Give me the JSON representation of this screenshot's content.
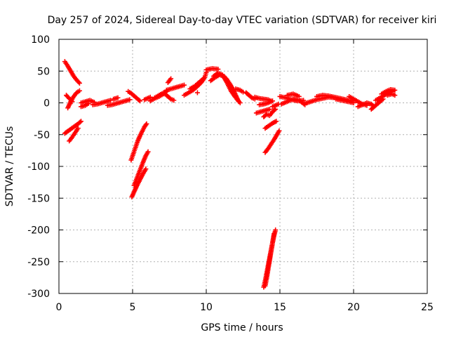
{
  "chart_data": {
    "type": "scatter",
    "title": "Day 257 of 2024, Sidereal Day-to-day VTEC variation (SDTVAR) for receiver kiri",
    "xlabel": "GPS time / hours",
    "ylabel": "SDTVAR / TECUs",
    "xlim": [
      0,
      25
    ],
    "ylim": [
      -300,
      100
    ],
    "xticks": [
      0,
      5,
      10,
      15,
      20,
      25
    ],
    "yticks": [
      -300,
      -250,
      -200,
      -150,
      -100,
      -50,
      0,
      50,
      100
    ],
    "xtick_labels": [
      "0",
      "5",
      "10",
      "15",
      "20",
      "25"
    ],
    "ytick_labels": [
      "-300",
      "-250",
      "-200",
      "-150",
      "-100",
      "-50",
      "0",
      "50",
      "100"
    ],
    "grid": true,
    "marker": "+",
    "color": "#ff0000",
    "segments": [
      [
        [
          0.4,
          65
        ],
        [
          0.6,
          58
        ],
        [
          0.8,
          50
        ],
        [
          1.0,
          42
        ],
        [
          1.2,
          36
        ],
        [
          1.4,
          31
        ]
      ],
      [
        [
          0.5,
          12
        ],
        [
          0.7,
          7
        ],
        [
          0.9,
          2
        ]
      ],
      [
        [
          0.6,
          -8
        ],
        [
          0.8,
          2
        ],
        [
          1.0,
          10
        ],
        [
          1.2,
          16
        ],
        [
          1.4,
          19
        ]
      ],
      [
        [
          0.4,
          -48
        ],
        [
          0.7,
          -43
        ],
        [
          1.0,
          -38
        ],
        [
          1.3,
          -33
        ],
        [
          1.5,
          -29
        ]
      ],
      [
        [
          0.7,
          -60
        ],
        [
          0.9,
          -54
        ],
        [
          1.1,
          -47
        ],
        [
          1.3,
          -40
        ]
      ],
      [
        [
          1.5,
          -6
        ],
        [
          1.8,
          -4
        ],
        [
          2.0,
          -1
        ]
      ],
      [
        [
          1.5,
          0
        ],
        [
          1.8,
          2
        ],
        [
          2.1,
          4
        ],
        [
          2.4,
          1
        ]
      ],
      [
        [
          2.3,
          -3
        ],
        [
          2.6,
          -2
        ],
        [
          2.9,
          0
        ],
        [
          3.2,
          2
        ],
        [
          3.5,
          4
        ]
      ],
      [
        [
          3.3,
          -4
        ],
        [
          3.6,
          -3
        ],
        [
          3.9,
          -1
        ],
        [
          4.2,
          1
        ],
        [
          4.5,
          3
        ],
        [
          4.8,
          5
        ]
      ],
      [
        [
          3.7,
          6
        ],
        [
          4.0,
          8
        ]
      ],
      [
        [
          4.7,
          18
        ],
        [
          4.9,
          15
        ],
        [
          5.1,
          11
        ],
        [
          5.3,
          7
        ],
        [
          5.5,
          3
        ]
      ],
      [
        [
          4.9,
          -90
        ],
        [
          5.05,
          -80
        ],
        [
          5.2,
          -70
        ],
        [
          5.35,
          -60
        ],
        [
          5.5,
          -52
        ],
        [
          5.65,
          -45
        ],
        [
          5.8,
          -38
        ],
        [
          5.95,
          -33
        ]
      ],
      [
        [
          4.95,
          -148
        ],
        [
          5.1,
          -140
        ],
        [
          5.3,
          -130
        ],
        [
          5.5,
          -121
        ],
        [
          5.7,
          -112
        ],
        [
          5.9,
          -104
        ]
      ],
      [
        [
          5.1,
          -130
        ],
        [
          5.3,
          -118
        ],
        [
          5.5,
          -106
        ],
        [
          5.7,
          -94
        ],
        [
          5.9,
          -83
        ],
        [
          6.05,
          -77
        ]
      ],
      [
        [
          5.8,
          5
        ],
        [
          6.0,
          7
        ],
        [
          6.2,
          9
        ]
      ],
      [
        [
          6.2,
          3
        ],
        [
          6.5,
          7
        ],
        [
          6.8,
          10
        ],
        [
          7.1,
          14
        ],
        [
          7.3,
          18
        ]
      ],
      [
        [
          6.5,
          8
        ],
        [
          6.8,
          12
        ],
        [
          7.1,
          16
        ]
      ],
      [
        [
          7.2,
          14
        ],
        [
          7.4,
          10
        ],
        [
          7.6,
          6
        ],
        [
          7.8,
          4
        ]
      ],
      [
        [
          7.3,
          20
        ],
        [
          7.6,
          22
        ],
        [
          7.9,
          24
        ],
        [
          8.2,
          26
        ],
        [
          8.5,
          28
        ]
      ],
      [
        [
          7.4,
          32
        ],
        [
          7.6,
          38
        ]
      ],
      [
        [
          8.5,
          12
        ],
        [
          8.8,
          16
        ],
        [
          9.1,
          20
        ],
        [
          9.4,
          26
        ],
        [
          9.7,
          33
        ],
        [
          9.9,
          40
        ],
        [
          10.0,
          48
        ]
      ],
      [
        [
          8.9,
          22
        ],
        [
          9.2,
          26
        ],
        [
          9.5,
          32
        ],
        [
          9.8,
          38
        ]
      ],
      [
        [
          9.4,
          16
        ]
      ],
      [
        [
          10.0,
          52
        ],
        [
          10.4,
          54
        ],
        [
          10.8,
          53
        ]
      ],
      [
        [
          10.3,
          35
        ],
        [
          10.6,
          40
        ],
        [
          10.9,
          44
        ],
        [
          11.2,
          42
        ],
        [
          11.4,
          37
        ],
        [
          11.6,
          30
        ],
        [
          11.8,
          22
        ],
        [
          12.0,
          12
        ],
        [
          12.2,
          2
        ]
      ],
      [
        [
          10.5,
          42
        ],
        [
          10.8,
          47
        ],
        [
          11.1,
          44
        ],
        [
          11.4,
          32
        ],
        [
          11.7,
          18
        ],
        [
          12.0,
          8
        ],
        [
          12.3,
          0
        ]
      ],
      [
        [
          12.0,
          22
        ],
        [
          12.3,
          20
        ],
        [
          12.5,
          17
        ]
      ],
      [
        [
          12.7,
          16
        ],
        [
          12.9,
          12
        ],
        [
          13.1,
          8
        ],
        [
          13.3,
          6
        ]
      ],
      [
        [
          13.3,
          9
        ],
        [
          13.6,
          7
        ],
        [
          13.9,
          6
        ],
        [
          14.2,
          5
        ],
        [
          14.4,
          3
        ]
      ],
      [
        [
          13.4,
          -16
        ],
        [
          13.7,
          -14
        ],
        [
          14.0,
          -12
        ],
        [
          14.3,
          -10
        ]
      ],
      [
        [
          13.6,
          -3
        ],
        [
          13.9,
          -2
        ],
        [
          14.2,
          0
        ],
        [
          14.5,
          3
        ]
      ],
      [
        [
          13.9,
          -22
        ],
        [
          14.1,
          -18
        ],
        [
          14.3,
          -20
        ],
        [
          14.5,
          -14
        ],
        [
          14.7,
          -10
        ]
      ],
      [
        [
          14.0,
          -40
        ],
        [
          14.25,
          -36
        ],
        [
          14.5,
          -32
        ],
        [
          14.75,
          -29
        ]
      ],
      [
        [
          14.0,
          -78
        ],
        [
          14.2,
          -72
        ],
        [
          14.4,
          -65
        ],
        [
          14.6,
          -58
        ],
        [
          14.8,
          -50
        ],
        [
          14.95,
          -44
        ]
      ],
      [
        [
          13.9,
          -290
        ],
        [
          14.0,
          -280
        ],
        [
          14.1,
          -268
        ],
        [
          14.2,
          -256
        ],
        [
          14.3,
          -244
        ],
        [
          14.4,
          -232
        ],
        [
          14.5,
          -220
        ],
        [
          14.6,
          -209
        ],
        [
          14.7,
          -200
        ]
      ],
      [
        [
          14.0,
          -288
        ],
        [
          14.1,
          -276
        ],
        [
          14.2,
          -262
        ],
        [
          14.3,
          -248
        ],
        [
          14.4,
          -234
        ],
        [
          14.5,
          -220
        ],
        [
          14.6,
          -206
        ]
      ],
      [
        [
          14.5,
          -6
        ],
        [
          14.7,
          -4
        ],
        [
          14.9,
          -2
        ]
      ],
      [
        [
          15.0,
          10
        ],
        [
          15.4,
          8
        ],
        [
          15.8,
          5
        ],
        [
          16.2,
          3
        ],
        [
          16.6,
          4
        ]
      ],
      [
        [
          15.1,
          -2
        ],
        [
          15.5,
          2
        ],
        [
          15.9,
          6
        ],
        [
          16.3,
          4
        ],
        [
          16.7,
          -3
        ]
      ],
      [
        [
          15.5,
          12
        ],
        [
          15.9,
          14
        ],
        [
          16.3,
          10
        ]
      ],
      [
        [
          16.7,
          -1
        ],
        [
          17.1,
          2
        ],
        [
          17.5,
          5
        ],
        [
          17.9,
          7
        ],
        [
          18.3,
          9
        ],
        [
          18.7,
          8
        ]
      ],
      [
        [
          17.5,
          10
        ],
        [
          17.9,
          12
        ],
        [
          18.3,
          11
        ],
        [
          18.7,
          9
        ],
        [
          19.1,
          7
        ],
        [
          19.5,
          5
        ],
        [
          19.9,
          3
        ]
      ],
      [
        [
          18.8,
          6
        ],
        [
          19.2,
          4
        ],
        [
          19.6,
          2
        ],
        [
          20.0,
          0
        ]
      ],
      [
        [
          19.7,
          10
        ],
        [
          20.0,
          6
        ],
        [
          20.3,
          2
        ],
        [
          20.6,
          -2
        ],
        [
          20.9,
          -4
        ]
      ],
      [
        [
          20.3,
          -6
        ],
        [
          20.6,
          -3
        ],
        [
          20.9,
          0
        ],
        [
          21.2,
          -2
        ],
        [
          21.4,
          -6
        ]
      ],
      [
        [
          21.2,
          -10
        ],
        [
          21.4,
          -6
        ],
        [
          21.6,
          -2
        ],
        [
          21.8,
          2
        ],
        [
          22.0,
          6
        ]
      ],
      [
        [
          21.5,
          4
        ],
        [
          21.8,
          8
        ],
        [
          22.1,
          12
        ],
        [
          22.4,
          16
        ],
        [
          22.7,
          19
        ]
      ],
      [
        [
          21.9,
          14
        ],
        [
          22.2,
          18
        ],
        [
          22.5,
          21
        ],
        [
          22.8,
          20
        ]
      ],
      [
        [
          22.3,
          12
        ],
        [
          22.6,
          14
        ],
        [
          22.8,
          12
        ]
      ]
    ]
  }
}
